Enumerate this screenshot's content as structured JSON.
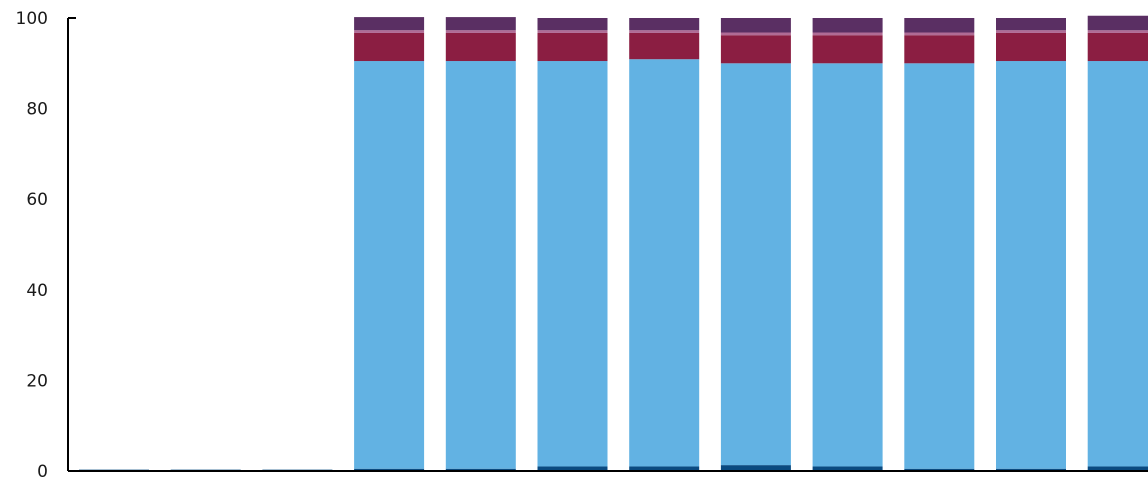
{
  "chart_data": {
    "type": "bar",
    "stacked": true,
    "categories": [
      "",
      "",
      "",
      "",
      "",
      "",
      "",
      "",
      "",
      "",
      "",
      ""
    ],
    "ylim": [
      0,
      100
    ],
    "yticks": [
      "0",
      "20",
      "40",
      "60",
      "80",
      "100"
    ],
    "title": "",
    "xlabel": "",
    "ylabel": "",
    "grid": false,
    "legend": "none",
    "series": [
      {
        "color": "#0a4a80",
        "values": [
          0.3,
          0.3,
          0.3,
          0.5,
          0.5,
          1.0,
          1.0,
          1.3,
          1.0,
          0.5,
          0.5,
          1.0
        ]
      },
      {
        "color": "#62b2e3",
        "values": [
          0,
          0,
          0,
          90.0,
          90.0,
          89.5,
          89.9,
          88.7,
          89.0,
          89.5,
          90.0,
          89.5
        ]
      },
      {
        "color": "#8b1e42",
        "values": [
          0,
          0,
          0,
          6.2,
          6.2,
          6.2,
          5.8,
          6.2,
          6.2,
          6.2,
          6.2,
          6.2
        ]
      },
      {
        "color": "#b06b95",
        "values": [
          0,
          0,
          0,
          0.6,
          0.6,
          0.6,
          0.6,
          0.6,
          0.6,
          0.6,
          0.6,
          0.6
        ]
      },
      {
        "color": "#5a2f63",
        "values": [
          0,
          0,
          0,
          2.9,
          2.9,
          2.7,
          2.7,
          3.2,
          3.2,
          3.2,
          2.7,
          3.2
        ]
      }
    ]
  }
}
